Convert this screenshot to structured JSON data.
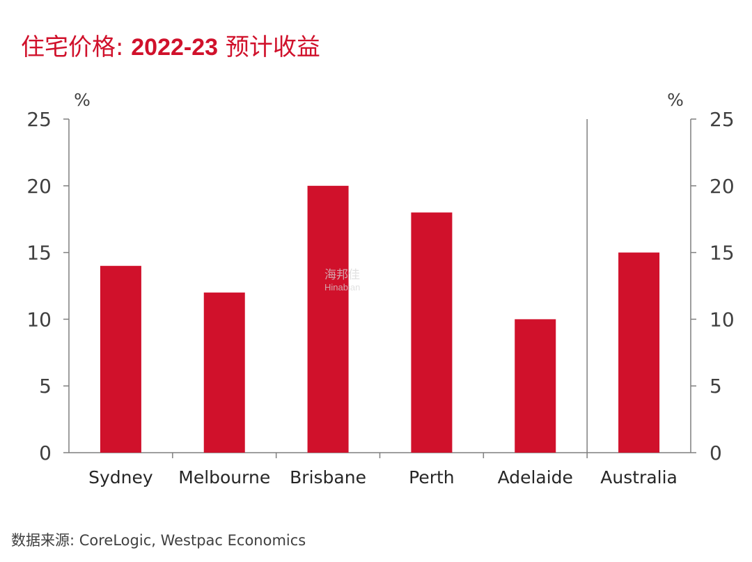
{
  "title": {
    "prefix": "住宅价格: ",
    "bold": "2022-23",
    "suffix": " 预计收益"
  },
  "source": "数据来源: CoreLogic, Westpac Economics",
  "watermark": {
    "cn": "海邦佳",
    "en": "Hinabian"
  },
  "colors": {
    "bar": "#d0112b",
    "title": "#d0112b",
    "axis": "#7f7f7f"
  },
  "chart_data": {
    "type": "bar",
    "categories": [
      "Sydney",
      "Melbourne",
      "Brisbane",
      "Perth",
      "Adelaide",
      "Australia"
    ],
    "values": [
      14,
      12,
      20,
      18,
      10,
      15
    ],
    "title": "住宅价格: 2022-23 预计收益",
    "ylabel_left": "%",
    "ylabel_right": "%",
    "ylim": [
      0,
      25
    ],
    "yticks": [
      0,
      5,
      10,
      15,
      20,
      25
    ],
    "secondary_axis": true,
    "separator_before": "Australia",
    "grid": false,
    "legend": "none"
  }
}
